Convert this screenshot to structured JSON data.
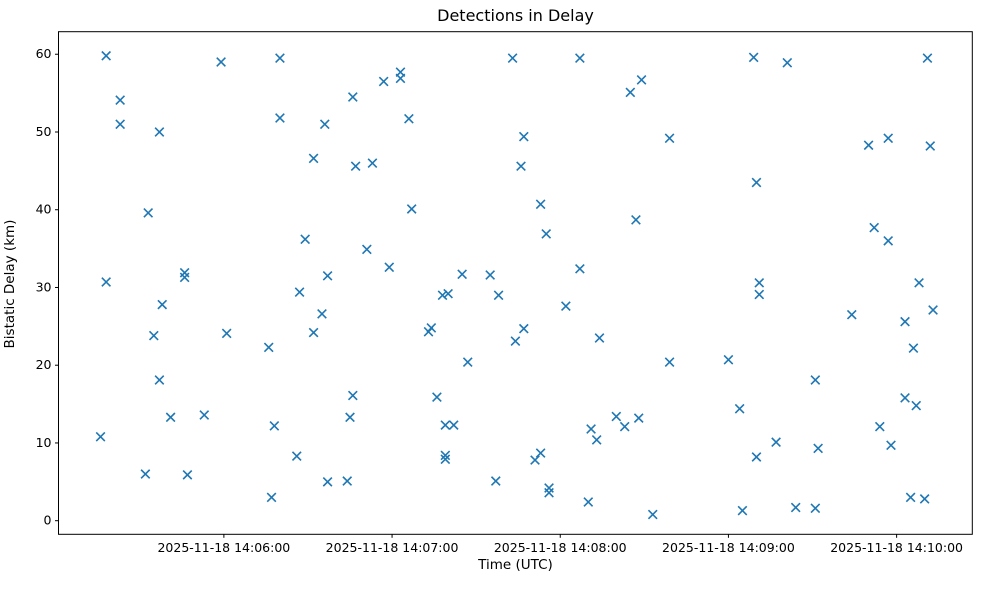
{
  "figure": {
    "title": "Detections in Delay",
    "xlabel": "Time (UTC)",
    "ylabel": "Bistatic Delay (km)"
  },
  "chart_data": {
    "type": "scatter",
    "title": "Detections in Delay",
    "xlabel": "Time (UTC)",
    "ylabel": "Bistatic Delay (km)",
    "marker": "x",
    "marker_color": "#1f77b4",
    "background_color": "#ffffff",
    "grid": false,
    "legend": null,
    "date": "2025-11-18",
    "x_tick_times": [
      "14:06:00",
      "14:07:00",
      "14:08:00",
      "14:09:00",
      "14:10:00"
    ],
    "x_tick_labels": [
      "2025-11-18 14:06:00",
      "2025-11-18 14:07:00",
      "2025-11-18 14:08:00",
      "2025-11-18 14:09:00",
      "2025-11-18 14:10:00"
    ],
    "y_ticks": [
      0,
      10,
      20,
      30,
      40,
      50,
      60
    ],
    "xlim": [
      "14:05:01",
      "14:10:27"
    ],
    "ylim": [
      -1.75,
      62.9
    ],
    "points": [
      [
        "14:05:16",
        10.8
      ],
      [
        "14:05:18",
        30.7
      ],
      [
        "14:05:18",
        59.8
      ],
      [
        "14:05:23",
        54.1
      ],
      [
        "14:05:23",
        51.0
      ],
      [
        "14:05:32",
        6.0
      ],
      [
        "14:05:33",
        39.6
      ],
      [
        "14:05:35",
        23.8
      ],
      [
        "14:05:37",
        18.1
      ],
      [
        "14:05:37",
        50.0
      ],
      [
        "14:05:38",
        27.8
      ],
      [
        "14:05:41",
        13.3
      ],
      [
        "14:05:46",
        31.9
      ],
      [
        "14:05:46",
        31.3
      ],
      [
        "14:05:47",
        5.9
      ],
      [
        "14:05:53",
        13.6
      ],
      [
        "14:05:59",
        59.0
      ],
      [
        "14:06:01",
        24.1
      ],
      [
        "14:06:16",
        22.3
      ],
      [
        "14:06:17",
        3.0
      ],
      [
        "14:06:18",
        12.2
      ],
      [
        "14:06:20",
        59.5
      ],
      [
        "14:06:20",
        51.8
      ],
      [
        "14:06:26",
        8.3
      ],
      [
        "14:06:27",
        29.4
      ],
      [
        "14:06:29",
        36.2
      ],
      [
        "14:06:32",
        46.6
      ],
      [
        "14:06:32",
        24.2
      ],
      [
        "14:06:35",
        26.6
      ],
      [
        "14:06:36",
        51.0
      ],
      [
        "14:06:37",
        31.5
      ],
      [
        "14:06:37",
        5.0
      ],
      [
        "14:06:44",
        5.1
      ],
      [
        "14:06:45",
        13.3
      ],
      [
        "14:06:46",
        16.1
      ],
      [
        "14:06:46",
        54.5
      ],
      [
        "14:06:47",
        45.6
      ],
      [
        "14:06:51",
        34.9
      ],
      [
        "14:06:53",
        46.0
      ],
      [
        "14:06:57",
        56.5
      ],
      [
        "14:06:59",
        32.6
      ],
      [
        "14:07:03",
        57.7
      ],
      [
        "14:07:03",
        56.9
      ],
      [
        "14:07:06",
        51.7
      ],
      [
        "14:07:07",
        40.1
      ],
      [
        "14:07:13",
        24.3
      ],
      [
        "14:07:14",
        24.8
      ],
      [
        "14:07:16",
        15.9
      ],
      [
        "14:07:18",
        29.0
      ],
      [
        "14:07:19",
        8.4
      ],
      [
        "14:07:19",
        7.9
      ],
      [
        "14:07:19",
        12.3
      ],
      [
        "14:07:20",
        29.2
      ],
      [
        "14:07:22",
        12.3
      ],
      [
        "14:07:25",
        31.7
      ],
      [
        "14:07:27",
        20.4
      ],
      [
        "14:07:35",
        31.6
      ],
      [
        "14:07:37",
        5.1
      ],
      [
        "14:07:38",
        29.0
      ],
      [
        "14:07:43",
        59.5
      ],
      [
        "14:07:44",
        23.1
      ],
      [
        "14:07:46",
        45.6
      ],
      [
        "14:07:47",
        24.7
      ],
      [
        "14:07:47",
        49.4
      ],
      [
        "14:07:51",
        7.8
      ],
      [
        "14:07:53",
        8.7
      ],
      [
        "14:07:53",
        40.7
      ],
      [
        "14:07:55",
        36.9
      ],
      [
        "14:07:56",
        4.2
      ],
      [
        "14:07:56",
        3.6
      ],
      [
        "14:08:02",
        27.6
      ],
      [
        "14:08:07",
        32.4
      ],
      [
        "14:08:07",
        59.5
      ],
      [
        "14:08:10",
        2.4
      ],
      [
        "14:08:11",
        11.8
      ],
      [
        "14:08:13",
        10.4
      ],
      [
        "14:08:14",
        23.5
      ],
      [
        "14:08:20",
        13.4
      ],
      [
        "14:08:23",
        12.1
      ],
      [
        "14:08:25",
        55.1
      ],
      [
        "14:08:27",
        38.7
      ],
      [
        "14:08:28",
        13.2
      ],
      [
        "14:08:29",
        56.7
      ],
      [
        "14:08:33",
        0.8
      ],
      [
        "14:08:39",
        49.2
      ],
      [
        "14:08:39",
        20.4
      ],
      [
        "14:09:00",
        20.7
      ],
      [
        "14:09:04",
        14.4
      ],
      [
        "14:09:05",
        1.3
      ],
      [
        "14:09:09",
        59.6
      ],
      [
        "14:09:10",
        8.2
      ],
      [
        "14:09:10",
        43.5
      ],
      [
        "14:09:11",
        30.6
      ],
      [
        "14:09:11",
        29.1
      ],
      [
        "14:09:17",
        10.1
      ],
      [
        "14:09:21",
        58.9
      ],
      [
        "14:09:24",
        1.7
      ],
      [
        "14:09:31",
        18.1
      ],
      [
        "14:09:31",
        1.6
      ],
      [
        "14:09:32",
        9.3
      ],
      [
        "14:09:44",
        26.5
      ],
      [
        "14:09:50",
        48.3
      ],
      [
        "14:09:52",
        37.7
      ],
      [
        "14:09:54",
        12.1
      ],
      [
        "14:09:57",
        49.2
      ],
      [
        "14:09:57",
        36.0
      ],
      [
        "14:09:58",
        9.7
      ],
      [
        "14:10:03",
        15.8
      ],
      [
        "14:10:03",
        25.6
      ],
      [
        "14:10:05",
        3.0
      ],
      [
        "14:10:06",
        22.2
      ],
      [
        "14:10:07",
        14.8
      ],
      [
        "14:10:08",
        30.6
      ],
      [
        "14:10:10",
        2.8
      ],
      [
        "14:10:11",
        59.5
      ],
      [
        "14:10:12",
        48.2
      ],
      [
        "14:10:13",
        27.1
      ]
    ]
  }
}
